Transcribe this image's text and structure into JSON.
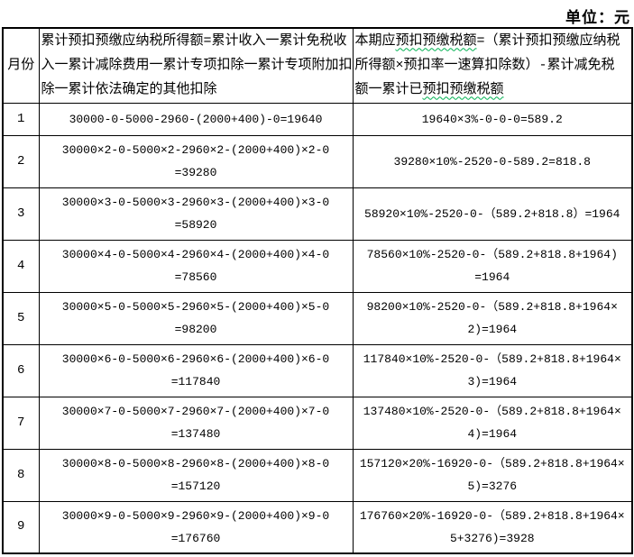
{
  "unit_label": "单位：元",
  "colors": {
    "border": "#000000",
    "text": "#000000",
    "grammar_wavy": "#00b050"
  },
  "table": {
    "header": {
      "month": "月份",
      "col2_lines": [
        "累计预扣预缴应纳税所得额=累计收入一累计免税收",
        "入一累计减除费用一累计专项扣除一累计专项附加扣",
        "除一累计依法确定的其他扣除"
      ],
      "col3_lines": [
        [
          {
            "t": "本期应"
          },
          {
            "t": "预扣预缴税额",
            "w": true
          },
          {
            "t": "=（累计预扣预缴应纳税"
          }
        ],
        [
          {
            "t": "所得额×预扣率一速算扣除数）-累计减免税"
          }
        ],
        [
          {
            "t": "额一累计已"
          },
          {
            "t": "预扣预缴税额",
            "w": true
          }
        ]
      ]
    },
    "rows": [
      {
        "month": "1",
        "col2": [
          "30000-0-5000-2960-(2000+400)-0=19640"
        ],
        "col3": [
          "19640×3%-0-0-0=589.2"
        ]
      },
      {
        "month": "2",
        "col2": [
          "30000×2-0-5000×2-2960×2-(2000+400)×2-0",
          "=39280"
        ],
        "col3": [
          "39280×10%-2520-0-589.2=818.8"
        ]
      },
      {
        "month": "3",
        "col2": [
          "30000×3-0-5000×3-2960×3-(2000+400)×3-0",
          "=58920"
        ],
        "col3": [
          "58920×10%-2520-0-（589.2+818.8）=1964"
        ]
      },
      {
        "month": "4",
        "col2": [
          "30000×4-0-5000×4-2960×4-(2000+400)×4-0",
          "=78560"
        ],
        "col3": [
          "78560×10%-2520-0-（589.2+818.8+1964)",
          "=1964"
        ]
      },
      {
        "month": "5",
        "col2": [
          "30000×5-0-5000×5-2960×5-(2000+400)×5-0",
          "=98200"
        ],
        "col3": [
          "98200×10%-2520-0-（589.2+818.8+1964×",
          "2)=1964"
        ]
      },
      {
        "month": "6",
        "col2": [
          "30000×6-0-5000×6-2960×6-(2000+400)×6-0",
          "=117840"
        ],
        "col3": [
          "117840×10%-2520-0-（589.2+818.8+1964×",
          "3)=1964"
        ]
      },
      {
        "month": "7",
        "col2": [
          "30000×7-0-5000×7-2960×7-(2000+400)×7-0",
          "=137480"
        ],
        "col3": [
          "137480×10%-2520-0-（589.2+818.8+1964×",
          "4)=1964"
        ]
      },
      {
        "month": "8",
        "col2": [
          "30000×8-0-5000×8-2960×8-(2000+400)×8-0",
          "=157120"
        ],
        "col3": [
          "157120×20%-16920-0-（589.2+818.8+1964×",
          "5)=3276"
        ]
      },
      {
        "month": "9",
        "col2": [
          "30000×9-0-5000×9-2960×9-(2000+400)×9-0",
          "=176760"
        ],
        "col3": [
          "176760×20%-16920-0-（589.2+818.8+1964×",
          "5+3276)=3928"
        ]
      }
    ]
  }
}
